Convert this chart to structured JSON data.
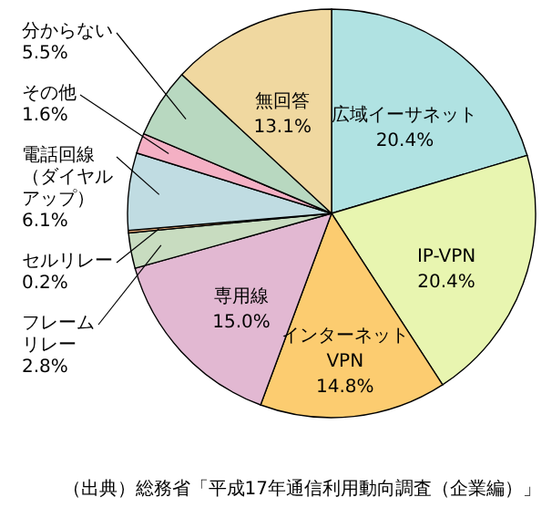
{
  "chart_data": {
    "type": "pie",
    "categories": [
      "広域イーサネット",
      "IP-VPN",
      "インターネットVPN",
      "専用線",
      "フレームリレー",
      "セルリレー",
      "電話回線（ダイヤルアップ）",
      "その他",
      "分からない",
      "無回答"
    ],
    "values": [
      20.4,
      20.4,
      14.8,
      15.0,
      2.8,
      0.2,
      6.1,
      1.6,
      5.5,
      13.1
    ],
    "value_labels": [
      "20.4%",
      "20.4%",
      "14.8%",
      "15.0%",
      "2.8%",
      "0.2%",
      "6.1%",
      "1.6%",
      "5.5%",
      "13.1%"
    ],
    "colors": [
      "#b0e2e2",
      "#e8f5b0",
      "#fccc70",
      "#e2b8d2",
      "#c8dcc0",
      "#f8b880",
      "#c0dce2",
      "#f4b0c4",
      "#b8d8c0",
      "#f0d8a0"
    ],
    "annotations": [
      "（出典）総務省「平成17年通信利用動向調査（企業編）」"
    ]
  }
}
